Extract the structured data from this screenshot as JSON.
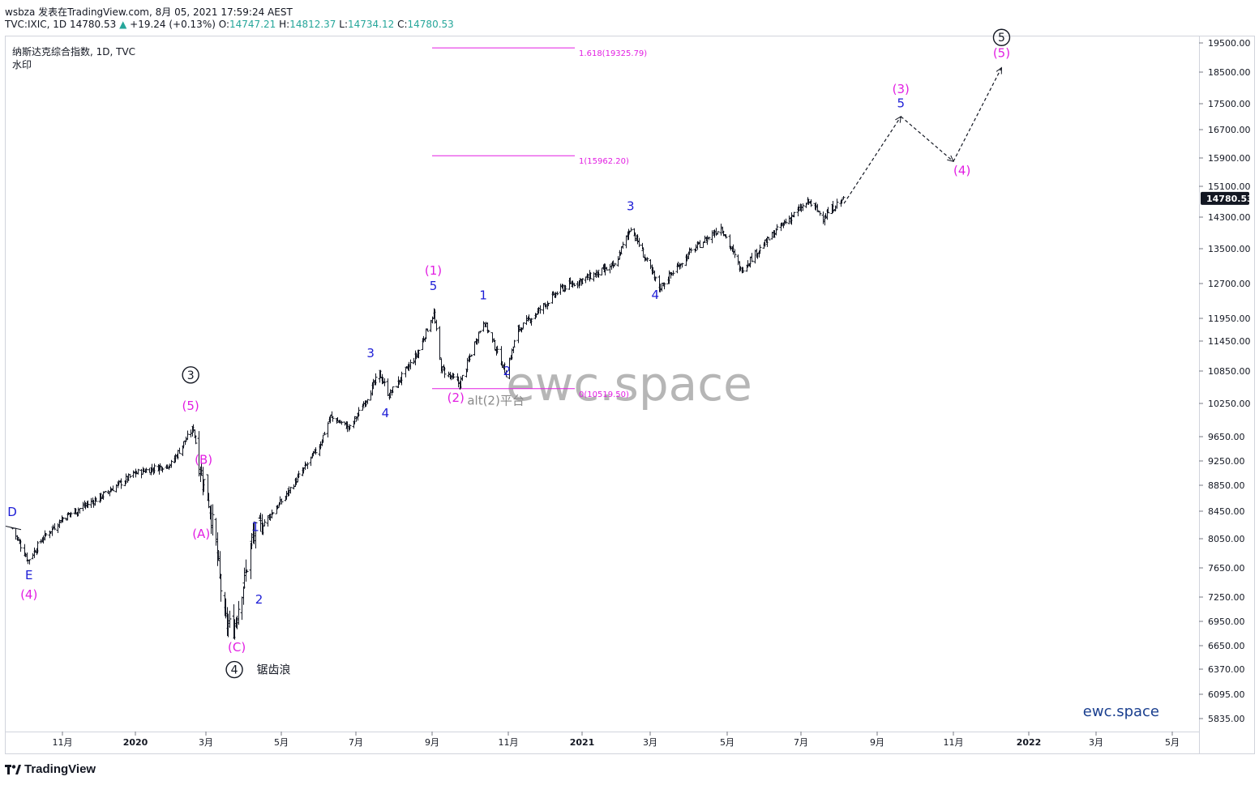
{
  "header": {
    "line1": "wsbza 发表在TradingView.com, 8月 05, 2021 17:59:24 AEST",
    "symbol": "TVC:IXIC, 1D",
    "last": "14780.53",
    "change": "+19.24 (+0.13%)",
    "o_label": "O:",
    "o_value": "14747.21",
    "h_label": "H:",
    "h_value": "14812.37",
    "l_label": "L:",
    "l_value": "14734.12",
    "c_label": "C:",
    "c_value": "14780.53"
  },
  "legend": {
    "title": "纳斯达克综合指数, 1D, TVC",
    "subtitle": "水印"
  },
  "footer": {
    "brand": "TradingView"
  },
  "colors": {
    "wave_major": "#1d1dd6",
    "wave_sub": "#e21ee2",
    "fib": "#e21ee2",
    "price": "#131722",
    "watermark": "#b6b6b6",
    "brand": "#1a3f8f"
  },
  "chart_data": {
    "type": "ohlc",
    "symbol": "TVC:IXIC",
    "interval": "1D",
    "ylim": [
      5600,
      19900
    ],
    "x_ticks": [
      "11月",
      "2020",
      "3月",
      "5月",
      "7月",
      "9月",
      "11月",
      "2021",
      "3月",
      "5月",
      "7月",
      "9月",
      "11月",
      "2022",
      "3月",
      "5月"
    ],
    "y_ticks": [
      "19500.00",
      "18500.00",
      "17500.00",
      "16700.00",
      "15900.00",
      "15100.00",
      "14300.00",
      "13500.00",
      "12700.00",
      "11950.00",
      "11450.00",
      "10850.00",
      "10250.00",
      "9650.00",
      "9250.00",
      "8850.00",
      "8450.00",
      "8050.00",
      "7650.00",
      "7250.00",
      "6950.00",
      "6650.00",
      "6370.00",
      "6095.00",
      "5835.00"
    ],
    "last_price_label": "14780.53",
    "price_path": [
      [
        "2019-09-20",
        8200
      ],
      [
        "2019-10-03",
        7750
      ],
      [
        "2019-10-15",
        8050
      ],
      [
        "2019-11-01",
        8350
      ],
      [
        "2019-12-01",
        8650
      ],
      [
        "2020-01-01",
        9050
      ],
      [
        "2020-01-31",
        9200
      ],
      [
        "2020-02-19",
        9800
      ],
      [
        "2020-02-24",
        9200
      ],
      [
        "2020-03-03",
        8600
      ],
      [
        "2020-03-09",
        7950
      ],
      [
        "2020-03-16",
        6950
      ],
      [
        "2020-03-23",
        6860
      ],
      [
        "2020-04-01",
        7500
      ],
      [
        "2020-04-08",
        8100
      ],
      [
        "2020-05-01",
        8600
      ],
      [
        "2020-06-01",
        9500
      ],
      [
        "2020-06-10",
        10000
      ],
      [
        "2020-06-26",
        9800
      ],
      [
        "2020-07-20",
        10800
      ],
      [
        "2020-07-28",
        10400
      ],
      [
        "2020-08-20",
        11200
      ],
      [
        "2020-09-02",
        12050
      ],
      [
        "2020-09-08",
        10900
      ],
      [
        "2020-09-23",
        10600
      ],
      [
        "2020-10-12",
        11900
      ],
      [
        "2020-10-30",
        10800
      ],
      [
        "2020-11-09",
        11700
      ],
      [
        "2020-12-15",
        12600
      ],
      [
        "2021-01-29",
        13100
      ],
      [
        "2021-02-12",
        14050
      ],
      [
        "2021-03-08",
        12600
      ],
      [
        "2021-04-01",
        13400
      ],
      [
        "2021-04-26",
        14050
      ],
      [
        "2021-05-12",
        13000
      ],
      [
        "2021-06-15",
        14100
      ],
      [
        "2021-07-07",
        14700
      ],
      [
        "2021-07-19",
        14300
      ],
      [
        "2021-08-04",
        14780
      ]
    ],
    "projection": [
      [
        "2021-08-05",
        14650
      ],
      [
        "2021-09-20",
        17100
      ],
      [
        "2021-11-01",
        15800
      ],
      [
        "2021-12-10",
        18650
      ]
    ],
    "fib_levels": [
      {
        "label": "1.618(19325.79)",
        "value": 19325.79
      },
      {
        "label": "1(15962.20)",
        "value": 15962.2
      },
      {
        "label": "0(10519.50)",
        "value": 10519.5
      }
    ],
    "wave_labels": [
      {
        "text": "D",
        "date": "2019-09-20",
        "price": 8380,
        "color": "blue"
      },
      {
        "text": "E",
        "date": "2019-10-04",
        "price": 7490,
        "color": "blue"
      },
      {
        "text": "(4)",
        "date": "2019-10-04",
        "price": 7230,
        "color": "magenta"
      },
      {
        "text": "3",
        "date": "2020-02-17",
        "price": 10700,
        "color": "black-circle"
      },
      {
        "text": "(5)",
        "date": "2020-02-17",
        "price": 10130,
        "color": "magenta"
      },
      {
        "text": "(B)",
        "date": "2020-02-28",
        "price": 9200,
        "color": "magenta"
      },
      {
        "text": "(A)",
        "date": "2020-02-26",
        "price": 8060,
        "color": "magenta"
      },
      {
        "text": "1",
        "date": "2020-04-10",
        "price": 8160,
        "color": "blue"
      },
      {
        "text": "2",
        "date": "2020-04-13",
        "price": 7170,
        "color": "blue"
      },
      {
        "text": "(C)",
        "date": "2020-03-26",
        "price": 6580,
        "color": "magenta"
      },
      {
        "text": "4",
        "date": "2020-03-24",
        "price": 6320,
        "color": "black-circle"
      },
      {
        "text": "锯齿浪",
        "date": "2020-04-11",
        "price": 6320,
        "color": "black"
      },
      {
        "text": "3",
        "date": "2020-07-13",
        "price": 11120,
        "color": "blue"
      },
      {
        "text": "4",
        "date": "2020-07-25",
        "price": 10000,
        "color": "blue"
      },
      {
        "text": "(1)",
        "date": "2020-09-02",
        "price": 12900,
        "color": "magenta"
      },
      {
        "text": "5",
        "date": "2020-09-02",
        "price": 12560,
        "color": "blue"
      },
      {
        "text": "1",
        "date": "2020-10-12",
        "price": 12350,
        "color": "blue"
      },
      {
        "text": "2",
        "date": "2020-10-31",
        "price": 10770,
        "color": "blue"
      },
      {
        "text": "(2)",
        "date": "2020-09-20",
        "price": 10280,
        "color": "magenta"
      },
      {
        "text": "alt(2)平台",
        "date": "2020-10-22",
        "price": 10230,
        "color": "gray"
      },
      {
        "text": "3",
        "date": "2021-02-12",
        "price": 14480,
        "color": "blue"
      },
      {
        "text": "4",
        "date": "2021-03-05",
        "price": 12360,
        "color": "blue"
      },
      {
        "text": "(3)",
        "date": "2021-09-20",
        "price": 17830,
        "color": "magenta"
      },
      {
        "text": "5",
        "date": "2021-09-20",
        "price": 17380,
        "color": "blue"
      },
      {
        "text": "(4)",
        "date": "2021-11-08",
        "price": 15430,
        "color": "magenta"
      },
      {
        "text": "5",
        "date": "2021-12-10",
        "price": 19550,
        "color": "black-circle"
      },
      {
        "text": "(5)",
        "date": "2021-12-10",
        "price": 19010,
        "color": "magenta"
      }
    ],
    "watermark": "ewc.space",
    "brand_text": "ewc.space"
  }
}
